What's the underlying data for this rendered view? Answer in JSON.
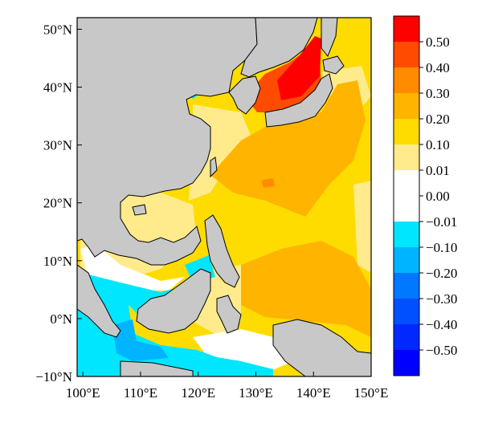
{
  "map": {
    "x_axis": {
      "ticks": [
        {
          "value": 100,
          "label": "100°E"
        },
        {
          "value": 110,
          "label": "110°E"
        },
        {
          "value": 120,
          "label": "120°E"
        },
        {
          "value": 130,
          "label": "130°E"
        },
        {
          "value": 140,
          "label": "140°E"
        },
        {
          "value": 150,
          "label": "150°E"
        }
      ]
    },
    "y_axis": {
      "ticks": [
        {
          "value": -10,
          "label": "−10°N"
        },
        {
          "value": 0,
          "label": "0°N"
        },
        {
          "value": 10,
          "label": "10°N"
        },
        {
          "value": 20,
          "label": "20°N"
        },
        {
          "value": 30,
          "label": "30°N"
        },
        {
          "value": 40,
          "label": "40°N"
        },
        {
          "value": 50,
          "label": "50°N"
        }
      ]
    },
    "extent": {
      "lon": [
        99,
        150
      ],
      "lat": [
        -10,
        52
      ]
    },
    "land_color": "#c8c8c8"
  },
  "colorbar": {
    "bins": [
      {
        "color": "#ff0000"
      },
      {
        "color": "#ff4b00"
      },
      {
        "color": "#ff8c00"
      },
      {
        "color": "#ffb400"
      },
      {
        "color": "#ffdc00"
      },
      {
        "color": "#ffeb8c"
      },
      {
        "color": "#ffffff"
      },
      {
        "color": "#ffffff"
      },
      {
        "color": "#00e6ff"
      },
      {
        "color": "#00b4ff"
      },
      {
        "color": "#0078ff"
      },
      {
        "color": "#0050ff"
      },
      {
        "color": "#0028ff"
      },
      {
        "color": "#0000ff"
      }
    ],
    "labels": [
      "0.50",
      "0.40",
      "0.30",
      "0.20",
      "0.10",
      "0.01",
      "0.00",
      "−0.01",
      "−0.10",
      "−0.20",
      "−0.30",
      "−0.40",
      "−0.50"
    ]
  }
}
